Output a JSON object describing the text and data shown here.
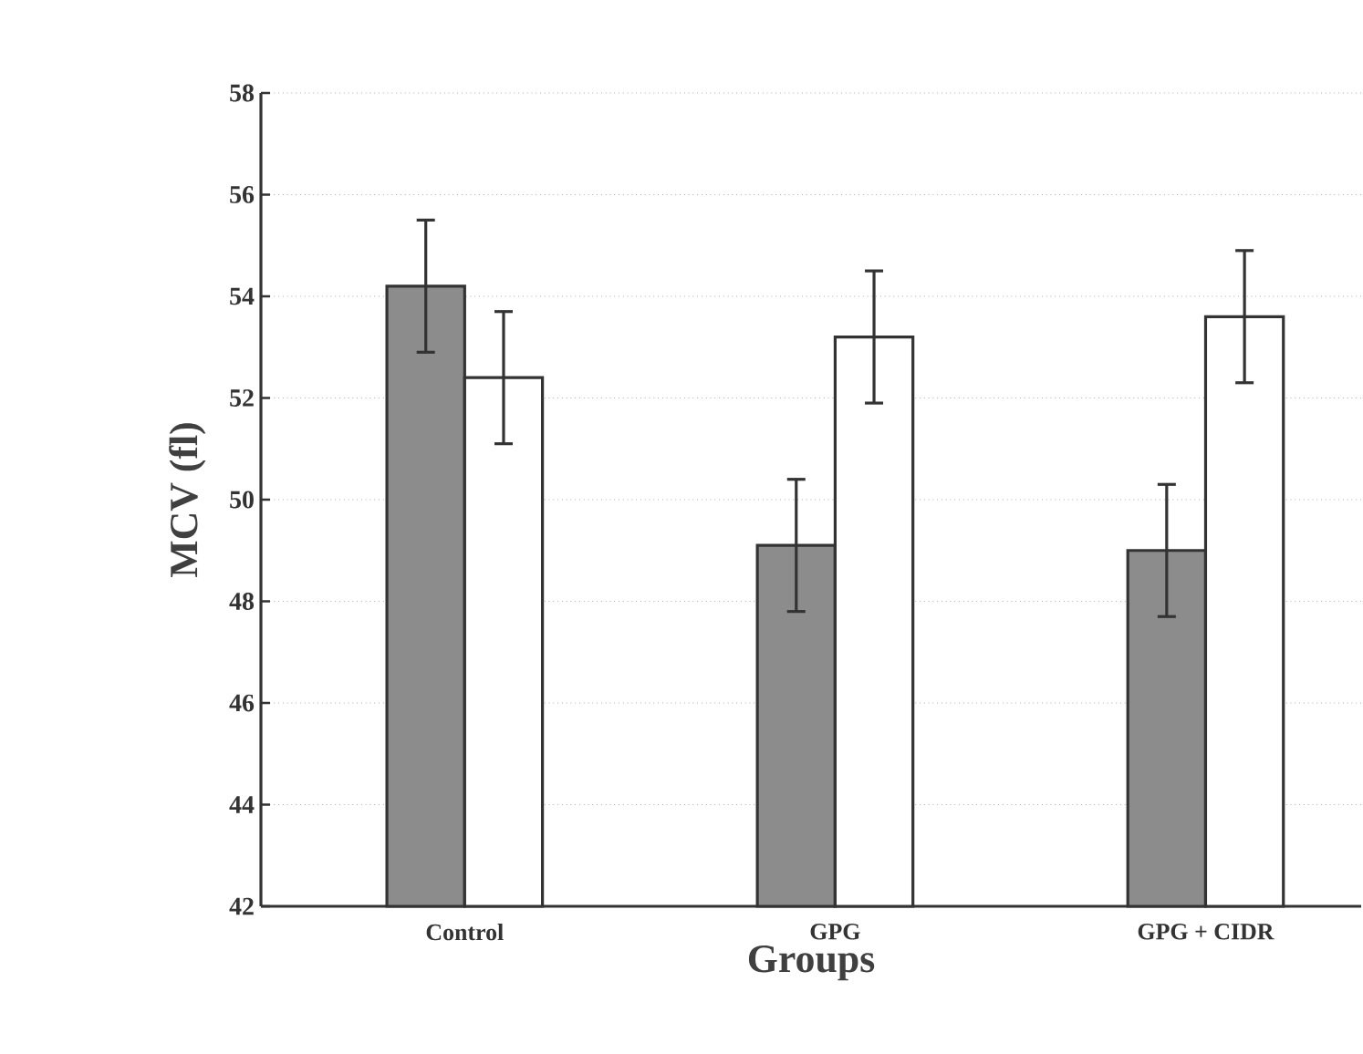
{
  "chart_data": {
    "type": "bar",
    "xlabel": "Groups",
    "ylabel": "MCV (fl)",
    "categories": [
      "Control",
      "GPG",
      "GPG + CIDR"
    ],
    "series": [
      {
        "color": "#8c8c8c",
        "values": [
          54.2,
          49.1,
          49.0
        ],
        "errors": [
          1.3,
          1.3,
          1.3
        ]
      },
      {
        "color": "#ffffff",
        "values": [
          52.4,
          53.2,
          53.6
        ],
        "errors": [
          1.3,
          1.3,
          1.3
        ]
      }
    ],
    "ylim": [
      42,
      58
    ],
    "yticks": [
      42,
      44,
      46,
      48,
      50,
      52,
      54,
      56,
      58
    ],
    "grid": "y"
  }
}
